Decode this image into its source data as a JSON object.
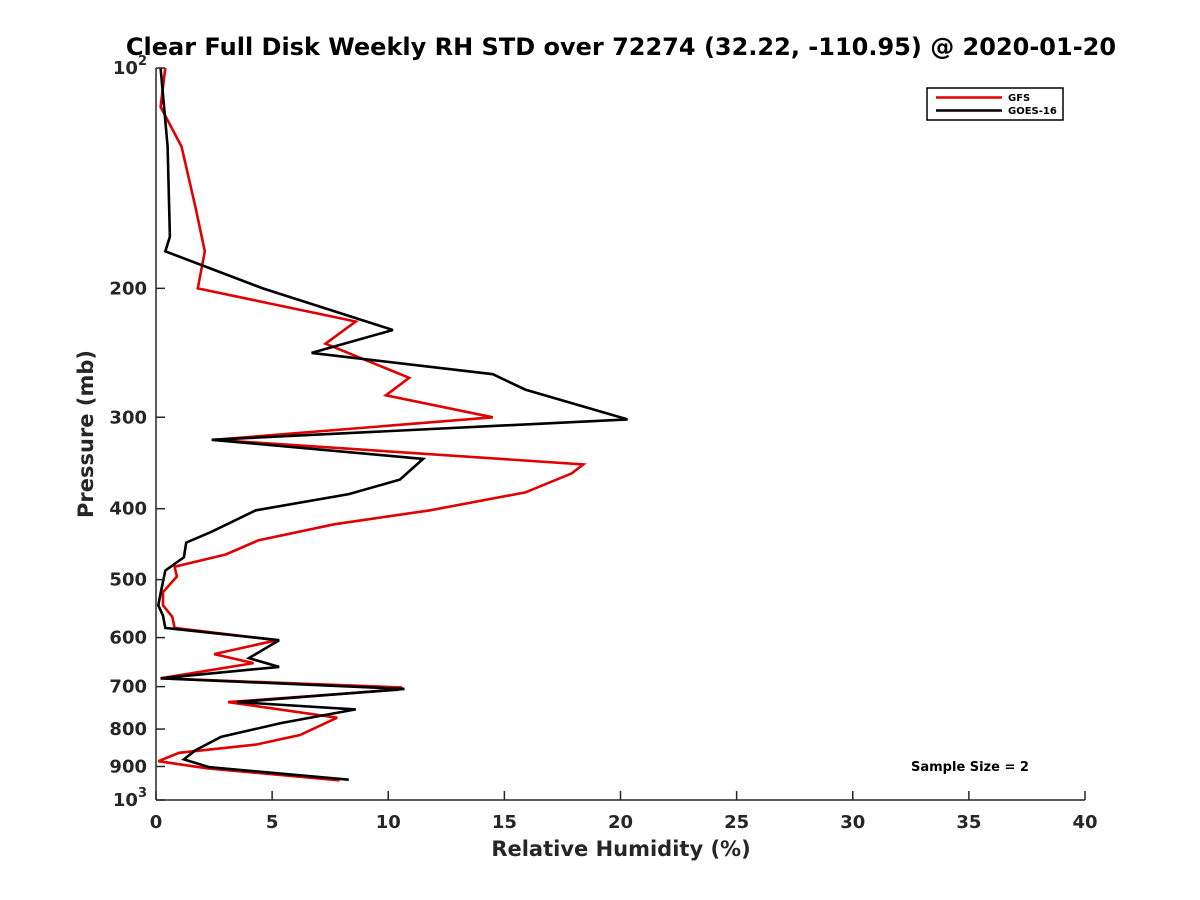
{
  "chart_data": {
    "type": "line",
    "title": "Clear Full Disk Weekly RH STD over 72274 (32.22, -110.95) @ 2020-01-20",
    "xlabel": "Relative Humidity (%)",
    "ylabel": "Pressure (mb)",
    "xlim": [
      0,
      40
    ],
    "ylim": [
      100,
      1000
    ],
    "yscale": "log",
    "y_reversed": true,
    "grid": false,
    "legend_position": "top-right",
    "x_ticks": [
      {
        "value": 0,
        "label": "0"
      },
      {
        "value": 5,
        "label": "5"
      },
      {
        "value": 10,
        "label": "10"
      },
      {
        "value": 15,
        "label": "15"
      },
      {
        "value": 20,
        "label": "20"
      },
      {
        "value": 25,
        "label": "25"
      },
      {
        "value": 30,
        "label": "30"
      },
      {
        "value": 35,
        "label": "35"
      },
      {
        "value": 40,
        "label": "40"
      }
    ],
    "y_ticks": [
      {
        "value": 100,
        "label": "10",
        "exp": "2"
      },
      {
        "value": 200,
        "label": "200"
      },
      {
        "value": 300,
        "label": "300"
      },
      {
        "value": 400,
        "label": "400"
      },
      {
        "value": 500,
        "label": "500"
      },
      {
        "value": 600,
        "label": "600"
      },
      {
        "value": 700,
        "label": "700"
      },
      {
        "value": 800,
        "label": "800"
      },
      {
        "value": 900,
        "label": "900"
      },
      {
        "value": 1000,
        "label": "10",
        "exp": "3"
      }
    ],
    "series": [
      {
        "name": "GFS",
        "color": "#e00000",
        "points": [
          [
            0.4,
            100
          ],
          [
            0.2,
            113
          ],
          [
            1.1,
            128
          ],
          [
            1.7,
            155
          ],
          [
            2.1,
            178
          ],
          [
            1.8,
            200
          ],
          [
            8.6,
            222
          ],
          [
            7.3,
            238
          ],
          [
            10.9,
            265
          ],
          [
            9.9,
            280
          ],
          [
            14.5,
            300
          ],
          [
            2.5,
            322
          ],
          [
            18.4,
            348
          ],
          [
            17.9,
            358
          ],
          [
            15.9,
            380
          ],
          [
            11.8,
            402
          ],
          [
            7.7,
            420
          ],
          [
            4.4,
            442
          ],
          [
            3.0,
            462
          ],
          [
            0.8,
            480
          ],
          [
            0.9,
            495
          ],
          [
            0.3,
            520
          ],
          [
            0.3,
            542
          ],
          [
            0.7,
            562
          ],
          [
            0.8,
            582
          ],
          [
            5.2,
            605
          ],
          [
            2.5,
            632
          ],
          [
            4.2,
            650
          ],
          [
            0.2,
            682
          ],
          [
            10.6,
            702
          ],
          [
            10.4,
            707
          ],
          [
            3.1,
            735
          ],
          [
            7.8,
            772
          ],
          [
            6.2,
            815
          ],
          [
            4.3,
            840
          ],
          [
            1.0,
            862
          ],
          [
            0.1,
            885
          ],
          [
            2.2,
            905
          ],
          [
            7.9,
            940
          ]
        ]
      },
      {
        "name": "GOES-16",
        "color": "#000000",
        "points": [
          [
            0.2,
            100
          ],
          [
            0.5,
            128
          ],
          [
            0.6,
            170
          ],
          [
            0.4,
            178
          ],
          [
            4.6,
            200
          ],
          [
            10.2,
            228
          ],
          [
            6.7,
            245
          ],
          [
            14.5,
            262
          ],
          [
            15.9,
            275
          ],
          [
            20.3,
            302
          ],
          [
            2.4,
            322
          ],
          [
            11.5,
            342
          ],
          [
            10.5,
            365
          ],
          [
            8.3,
            382
          ],
          [
            4.3,
            402
          ],
          [
            2.4,
            430
          ],
          [
            1.3,
            445
          ],
          [
            1.2,
            466
          ],
          [
            0.4,
            486
          ],
          [
            0.2,
            522
          ],
          [
            0.1,
            542
          ],
          [
            0.3,
            560
          ],
          [
            0.4,
            582
          ],
          [
            5.3,
            605
          ],
          [
            4.0,
            640
          ],
          [
            5.3,
            658
          ],
          [
            0.2,
            682
          ],
          [
            10.7,
            705
          ],
          [
            3.5,
            735
          ],
          [
            8.6,
            752
          ],
          [
            5.4,
            785
          ],
          [
            2.8,
            820
          ],
          [
            1.7,
            855
          ],
          [
            1.2,
            880
          ],
          [
            2.3,
            902
          ],
          [
            8.3,
            938
          ]
        ]
      }
    ],
    "annotations": [
      "Sample Size = 2"
    ]
  }
}
